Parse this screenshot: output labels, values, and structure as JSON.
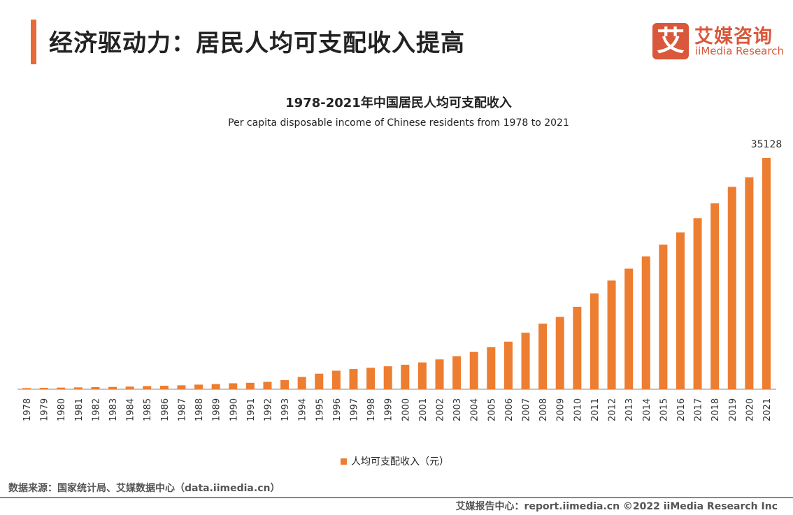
{
  "header": {
    "title": "经济驱动力：居民人均可支配收入提高",
    "logo_glyph": "艾",
    "logo_cn": "艾媒咨询",
    "logo_en": "iiMedia Research",
    "accent_color": "#e8693a"
  },
  "source": "数据来源：国家统计局、艾媒数据中心（data.iimedia.cn）",
  "footer": "艾媒报告中心：report.iimedia.cn   ©2022 iiMedia Research Inc",
  "chart_data": {
    "type": "bar",
    "title": "1978-2021年中国居民人均可支配收入",
    "subtitle": "Per capita disposable income of Chinese residents from 1978 to 2021",
    "categories": [
      "1978",
      "1979",
      "1980",
      "1981",
      "1982",
      "1983",
      "1984",
      "1985",
      "1986",
      "1987",
      "1988",
      "1989",
      "1990",
      "1991",
      "1992",
      "1993",
      "1994",
      "1995",
      "1996",
      "1997",
      "1998",
      "1999",
      "2000",
      "2001",
      "2002",
      "2003",
      "2004",
      "2005",
      "2006",
      "2007",
      "2008",
      "2009",
      "2010",
      "2011",
      "2012",
      "2013",
      "2014",
      "2015",
      "2016",
      "2017",
      "2018",
      "2019",
      "2020",
      "2021"
    ],
    "series": [
      {
        "name": "人均可支配收入（元）",
        "color": "#ed7d31",
        "values": [
          171,
          210,
          247,
          280,
          320,
          350,
          400,
          478,
          530,
          600,
          700,
          780,
          904,
          976,
          1125,
          1385,
          1870,
          2363,
          2814,
          3070,
          3254,
          3485,
          3721,
          4070,
          4532,
          5007,
          5661,
          6385,
          7229,
          8584,
          9957,
          10977,
          12520,
          14551,
          16510,
          18311,
          20167,
          21966,
          23821,
          25974,
          28228,
          30733,
          32189,
          35128
        ]
      }
    ],
    "data_labels": {
      "2021": "35128"
    },
    "ylim": [
      0,
      35128
    ],
    "grid": false,
    "legend": "bottom"
  }
}
